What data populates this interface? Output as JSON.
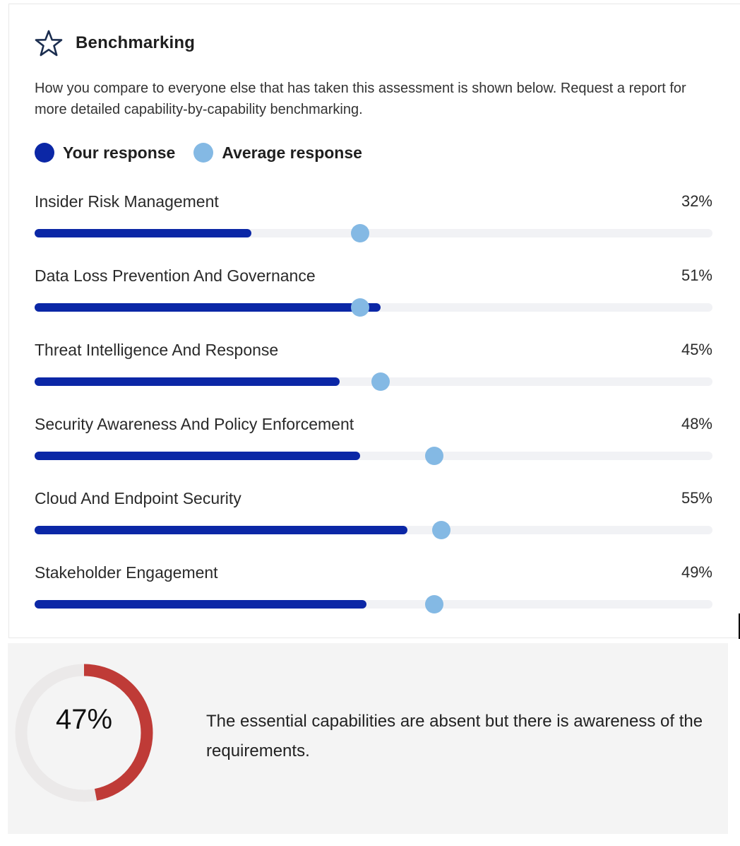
{
  "section": {
    "title": "Benchmarking",
    "icon": "star-icon",
    "description": "How you compare to everyone else that has taken this assessment is shown below. Request a report for more detailed capability-by-capability benchmarking."
  },
  "legend": [
    {
      "label": "Your response",
      "color": "#0b27a6"
    },
    {
      "label": "Average response",
      "color": "#84b9e4"
    }
  ],
  "colors": {
    "your_response": "#0b27a6",
    "average_response": "#84b9e4",
    "track": "#f1f2f5",
    "donut_progress": "#bf3b37",
    "donut_track": "#ebe9e9",
    "icon": "#1b2d4f"
  },
  "capabilities": [
    {
      "label": "Insider Risk Management",
      "value_label": "32%",
      "your": 32,
      "average": 48
    },
    {
      "label": "Data Loss Prevention And Governance",
      "value_label": "51%",
      "your": 51,
      "average": 48
    },
    {
      "label": "Threat Intelligence And Response",
      "value_label": "45%",
      "your": 45,
      "average": 51
    },
    {
      "label": "Security Awareness And Policy Enforcement",
      "value_label": "48%",
      "your": 48,
      "average": 59
    },
    {
      "label": "Cloud And Endpoint Security",
      "value_label": "55%",
      "your": 55,
      "average": 60
    },
    {
      "label": "Stakeholder Engagement",
      "value_label": "49%",
      "your": 49,
      "average": 59
    }
  ],
  "summary": {
    "score": 47,
    "score_label": "47%",
    "text": "The essential capabilities are absent but there is awareness of the requirements."
  },
  "chart_data": {
    "type": "bar",
    "title": "Benchmarking",
    "categories": [
      "Insider Risk Management",
      "Data Loss Prevention And Governance",
      "Threat Intelligence And Response",
      "Security Awareness And Policy Enforcement",
      "Cloud And Endpoint Security",
      "Stakeholder Engagement"
    ],
    "series": [
      {
        "name": "Your response",
        "values": [
          32,
          51,
          45,
          48,
          55,
          49
        ]
      },
      {
        "name": "Average response",
        "values": [
          48,
          48,
          51,
          59,
          60,
          59
        ]
      }
    ],
    "xlim": [
      0,
      100
    ],
    "orientation": "horizontal",
    "legend_position": "top"
  }
}
